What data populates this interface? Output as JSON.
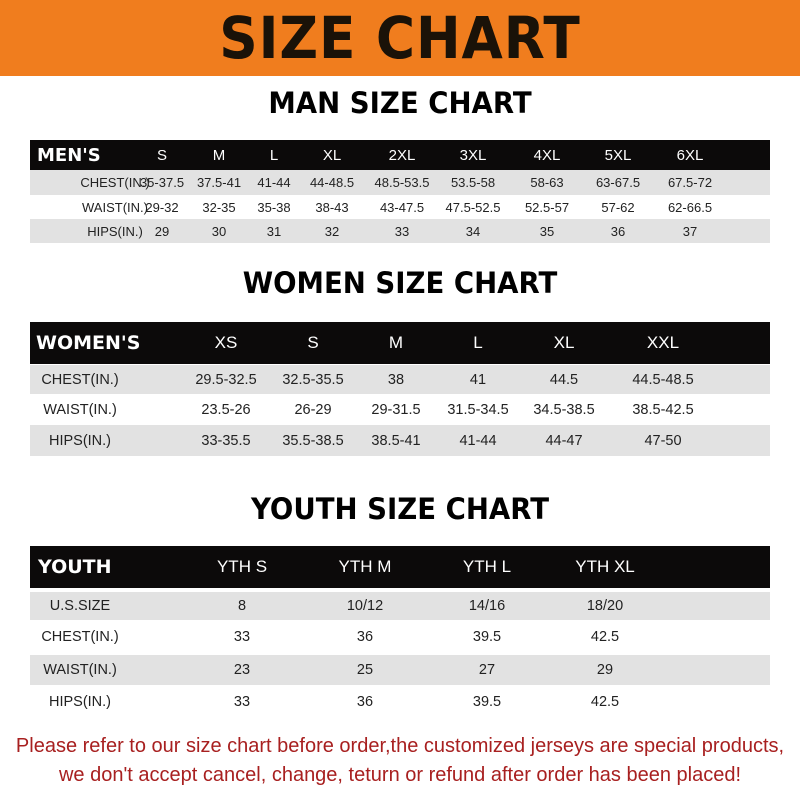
{
  "banner": {
    "title": "SIZE CHART",
    "color": "#f07d1e"
  },
  "men": {
    "title": "MAN SIZE CHART",
    "header": [
      "MEN'S",
      "S",
      "M",
      "L",
      "XL",
      "2XL",
      "3XL",
      "4XL",
      "5XL",
      "6XL"
    ],
    "rows": [
      [
        "CHEST(IN.)",
        "35-37.5",
        "37.5-41",
        "41-44",
        "44-48.5",
        "48.5-53.5",
        "53.5-58",
        "58-63",
        "63-67.5",
        "67.5-72"
      ],
      [
        "WAIST(IN.)",
        "29-32",
        "32-35",
        "35-38",
        "38-43",
        "43-47.5",
        "47.5-52.5",
        "52.5-57",
        "57-62",
        "62-66.5"
      ],
      [
        "HIPS(IN.)",
        "29",
        "30",
        "31",
        "32",
        "33",
        "34",
        "35",
        "36",
        "37"
      ]
    ]
  },
  "women": {
    "title": "WOMEN SIZE CHART",
    "header": [
      "WOMEN'S",
      "XS",
      "S",
      "M",
      "L",
      "XL",
      "XXL"
    ],
    "rows": [
      [
        "CHEST(IN.)",
        "29.5-32.5",
        "32.5-35.5",
        "38",
        "41",
        "44.5",
        "44.5-48.5"
      ],
      [
        "WAIST(IN.)",
        "23.5-26",
        "26-29",
        "29-31.5",
        "31.5-34.5",
        "34.5-38.5",
        "38.5-42.5"
      ],
      [
        "HIPS(IN.)",
        "33-35.5",
        "35.5-38.5",
        "38.5-41",
        "41-44",
        "44-47",
        "47-50"
      ]
    ]
  },
  "youth": {
    "title": "YOUTH SIZE CHART",
    "header": [
      "YOUTH",
      "YTH S",
      "YTH M",
      "YTH L",
      "YTH XL"
    ],
    "rows": [
      [
        "U.S.SIZE",
        "8",
        "10/12",
        "14/16",
        "18/20"
      ],
      [
        "CHEST(IN.)",
        "33",
        "36",
        "39.5",
        "42.5"
      ],
      [
        "WAIST(IN.)",
        "23",
        "25",
        "27",
        "29"
      ],
      [
        "HIPS(IN.)",
        "33",
        "36",
        "39.5",
        "42.5"
      ]
    ]
  },
  "footer": {
    "line1": "Please refer to our size chart before order,the customized jerseys are special products,",
    "line2": "we don't accept cancel, change, teturn or refund after order has been placed!",
    "color": "#a82020"
  }
}
